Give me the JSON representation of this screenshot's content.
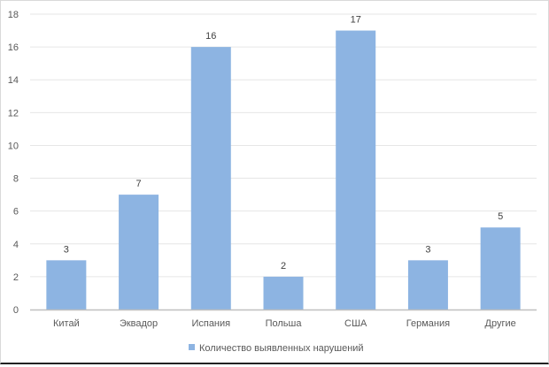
{
  "chart_data": {
    "type": "bar",
    "title": "",
    "xlabel": "",
    "ylabel": "",
    "categories": [
      "Китай",
      "Эквадор",
      "Испания",
      "Польша",
      "США",
      "Германия",
      "Другие"
    ],
    "series": [
      {
        "name": "Количество выявленных нарушений",
        "values": [
          3,
          7,
          16,
          2,
          17,
          3,
          5
        ],
        "color": "#8db4e2"
      }
    ],
    "ylim": [
      0,
      18
    ],
    "yticks": [
      0,
      2,
      4,
      6,
      8,
      10,
      12,
      14,
      16,
      18
    ],
    "grid": true,
    "data_labels": true,
    "legend_position": "bottom"
  },
  "legend": {
    "label": "Количество выявленных нарушений"
  }
}
